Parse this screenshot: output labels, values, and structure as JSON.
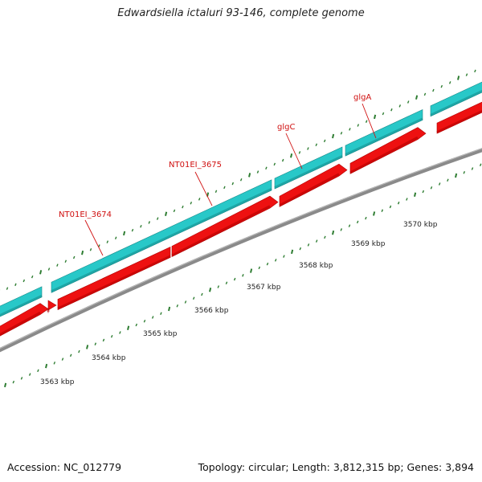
{
  "title": "Edwardsiella ictaluri 93-146, complete genome",
  "footer": {
    "accession": "Accession: NC_012779",
    "summary": "Topology: circular; Length: 3,812,315 bp; Genes: 3,894"
  },
  "colors": {
    "forward_strand": "#28c8c8",
    "forward_strand_dark": "#168a8a",
    "reverse_strand": "#ee1111",
    "reverse_strand_dark": "#b00000",
    "backbone": "#8a8a8a",
    "tick": "#2e7d32",
    "label": "#d01010"
  },
  "gene_labels": [
    "NT01EI_3674",
    "NT01EI_3675",
    "glgC",
    "glgA"
  ],
  "scale_labels": [
    "3563 kbp",
    "3564 kbp",
    "3565 kbp",
    "3566 kbp",
    "3567 kbp",
    "3568 kbp",
    "3569 kbp",
    "3570 kbp"
  ]
}
